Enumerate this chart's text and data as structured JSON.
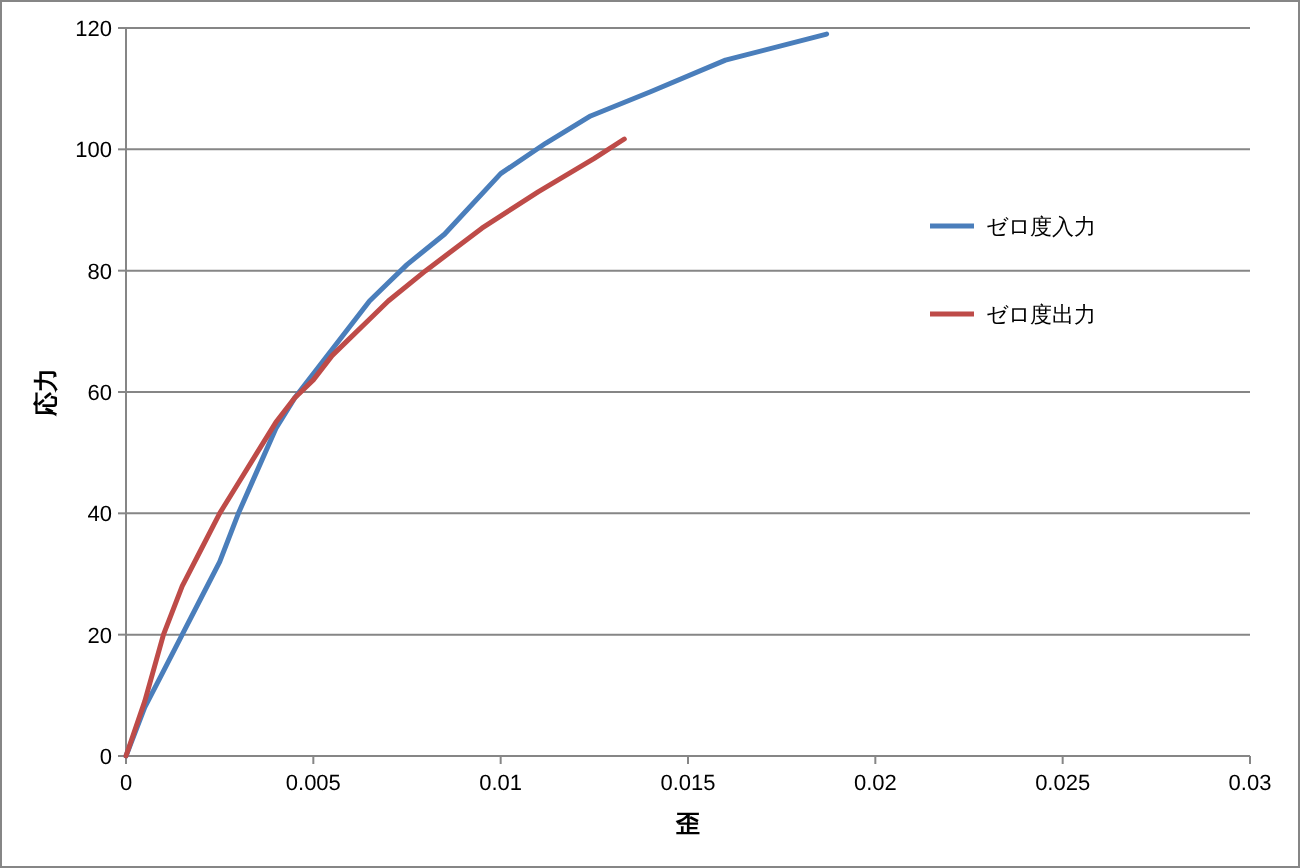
{
  "chart_data": {
    "type": "line",
    "xlabel": "歪",
    "ylabel": "応力",
    "xlim": [
      0,
      0.03
    ],
    "ylim": [
      0,
      120
    ],
    "xticks": [
      0,
      0.005,
      0.01,
      0.015,
      0.02,
      0.025,
      0.03
    ],
    "yticks": [
      0,
      20,
      40,
      60,
      80,
      100,
      120
    ],
    "grid": "y",
    "legend": "right",
    "marker": "none",
    "line_style": "solid",
    "series": [
      {
        "name": "ゼロ度入力",
        "color": "#4a7ebb",
        "x": [
          0,
          0.0005,
          0.001,
          0.0015,
          0.002,
          0.0025,
          0.003,
          0.0035,
          0.004,
          0.0045,
          0.005,
          0.0055,
          0.006,
          0.0065,
          0.007,
          0.0075,
          0.0085,
          0.01,
          0.0112,
          0.0124,
          0.014,
          0.016,
          0.0187
        ],
        "values": [
          0,
          8,
          14,
          20,
          26,
          32,
          40,
          47,
          54,
          59,
          63,
          67,
          71,
          75,
          78,
          81,
          86,
          96,
          101,
          105.5,
          109.5,
          114.7,
          119
        ]
      },
      {
        "name": "ゼロ度出力",
        "color": "#be4b48",
        "x": [
          0,
          0.0005,
          0.001,
          0.0015,
          0.002,
          0.0025,
          0.003,
          0.0035,
          0.004,
          0.0045,
          0.005,
          0.0055,
          0.006,
          0.0065,
          0.007,
          0.008,
          0.0095,
          0.011,
          0.0125,
          0.0133
        ],
        "values": [
          0,
          9,
          20,
          28,
          34,
          40,
          45,
          50,
          55,
          59,
          62,
          66,
          69,
          72,
          75,
          80,
          87,
          93,
          98.5,
          101.7
        ]
      }
    ]
  }
}
